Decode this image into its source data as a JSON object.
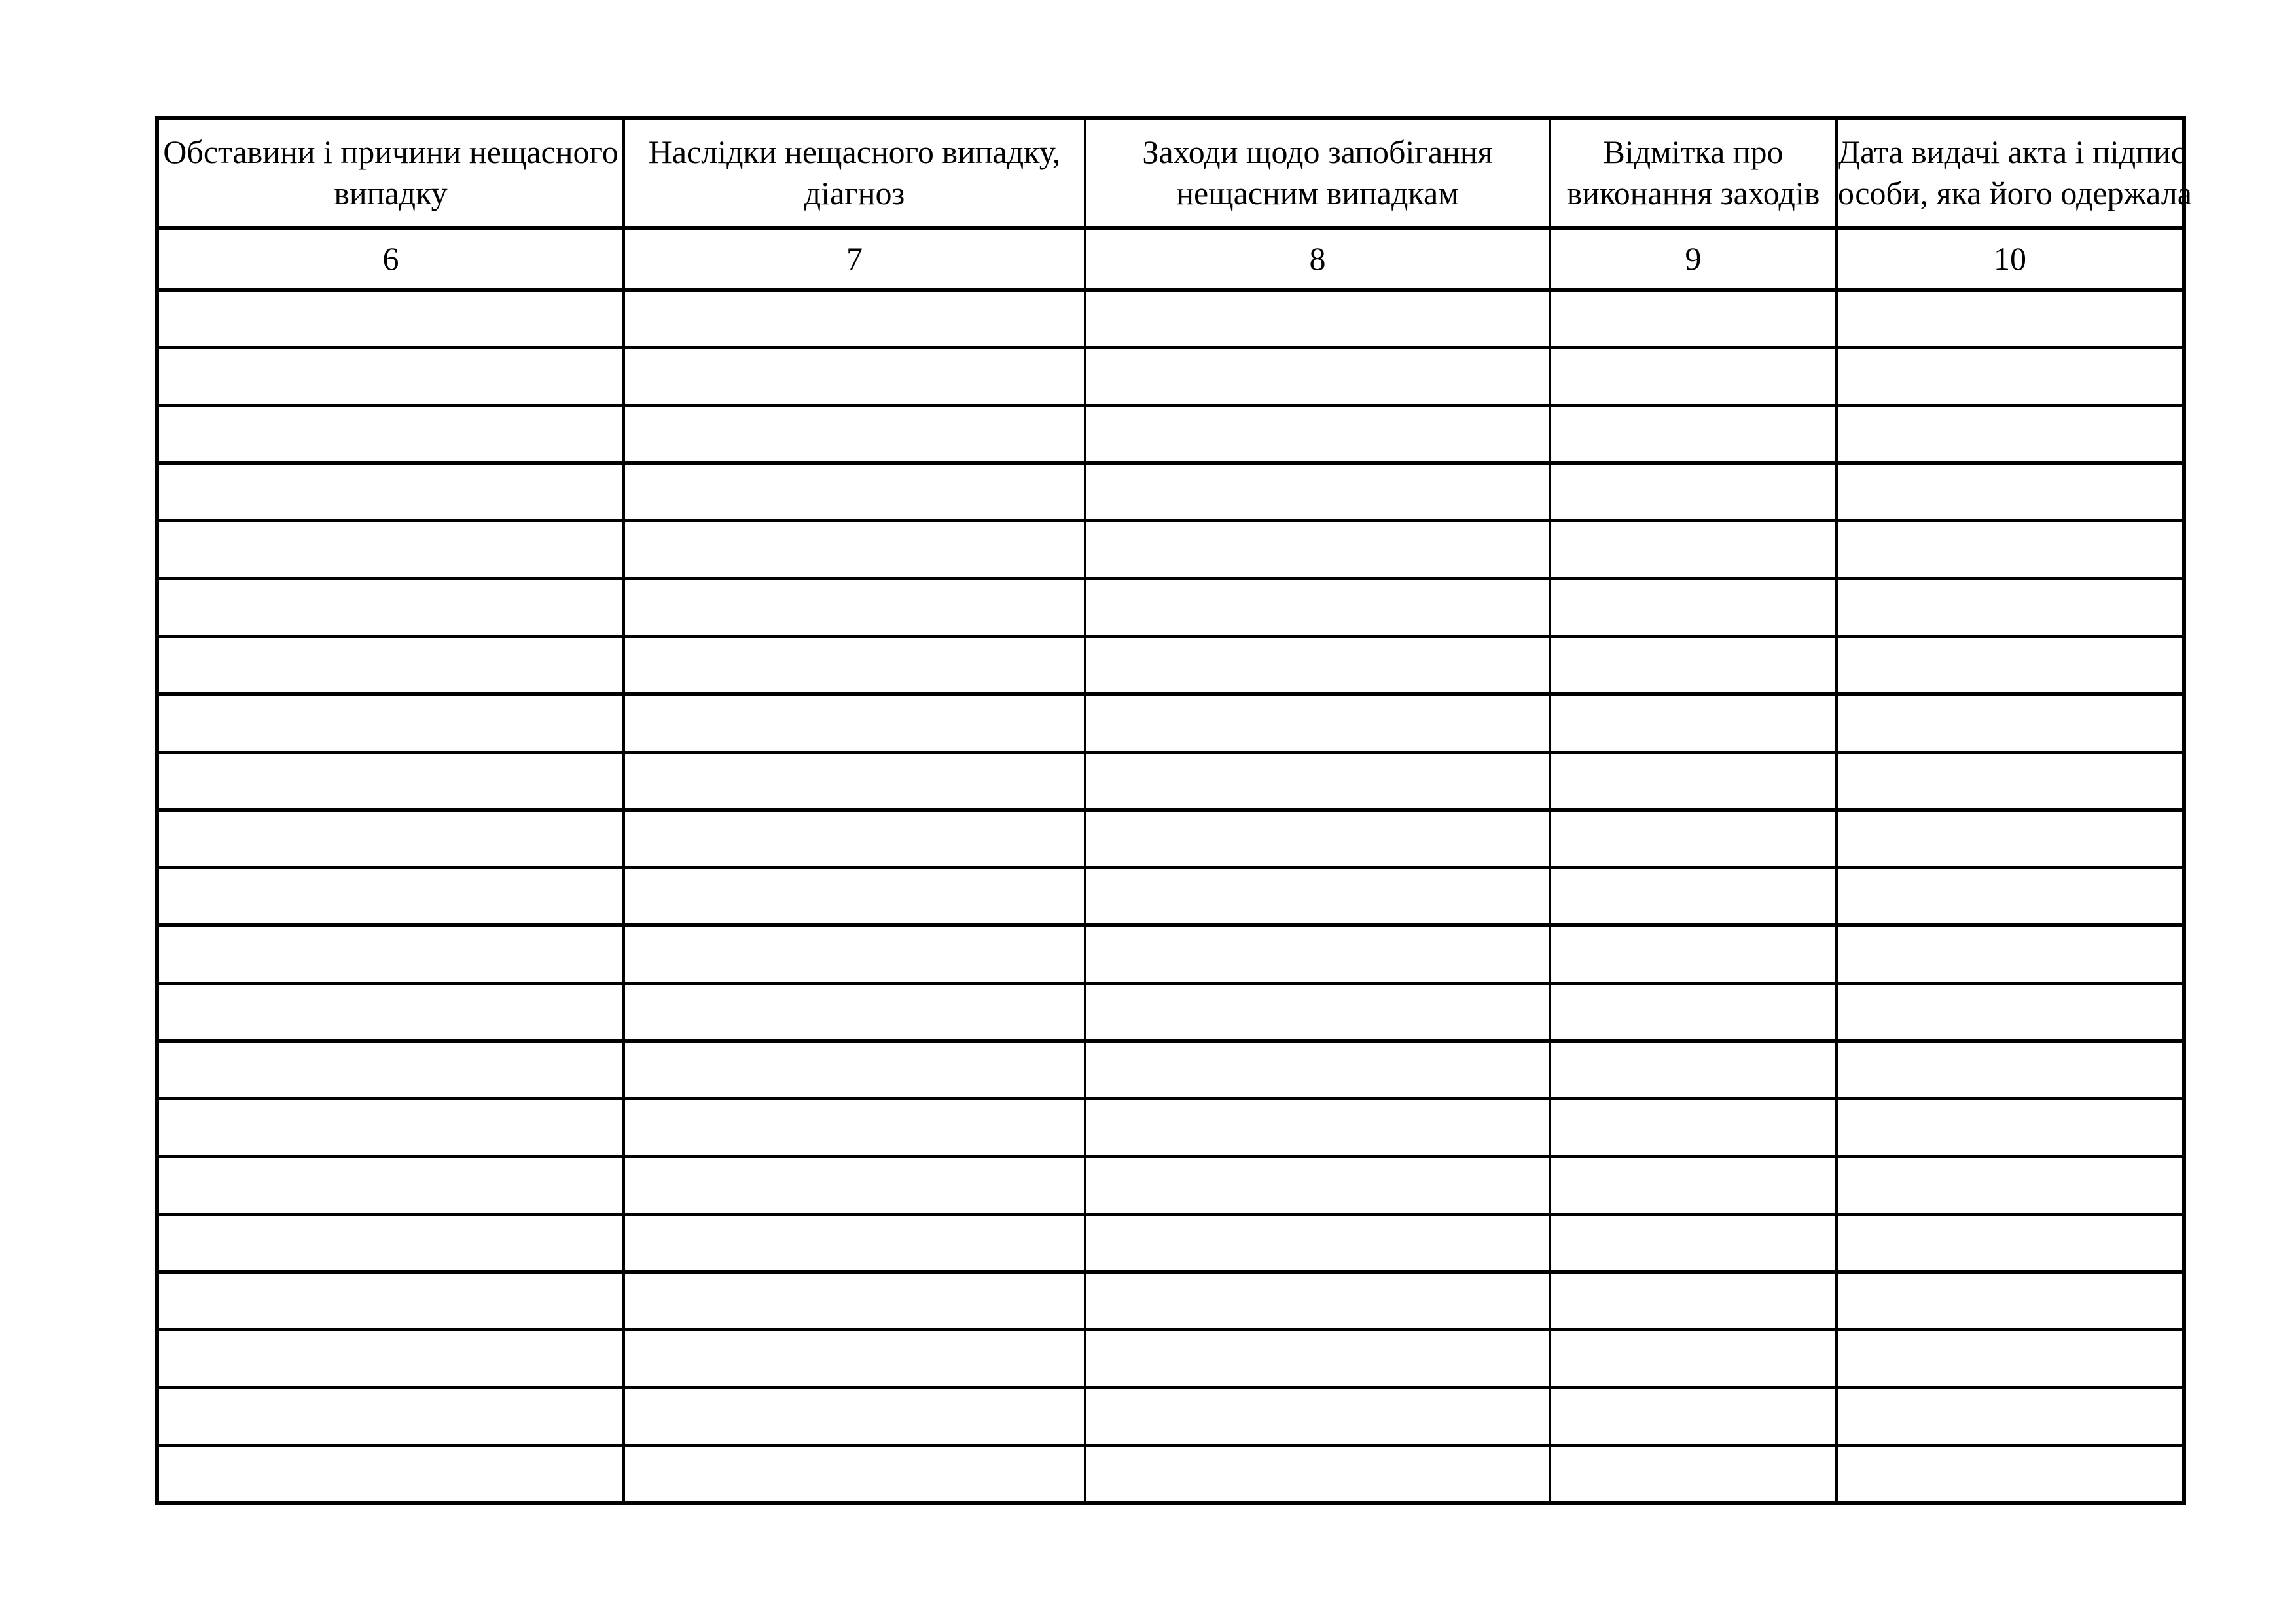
{
  "table": {
    "columns": [
      {
        "header_lines": [
          "Обставини і причини нещасного",
          "випадку"
        ],
        "number": "6"
      },
      {
        "header_lines": [
          "Наслідки нещасного випадку,",
          "діагноз"
        ],
        "number": "7"
      },
      {
        "header_lines": [
          "Заходи щодо запобігання",
          "нещасним випадкам"
        ],
        "number": "8"
      },
      {
        "header_lines": [
          "Відмітка про",
          "виконання заходів"
        ],
        "number": "9"
      },
      {
        "header_lines": [
          "Дата видачі акта і підпис",
          "особи, яка його одержала"
        ],
        "number": "10"
      }
    ],
    "empty_row_count": 21,
    "colors": {
      "border": "#000000",
      "text": "#000000",
      "page_background": "#ffffff"
    }
  }
}
